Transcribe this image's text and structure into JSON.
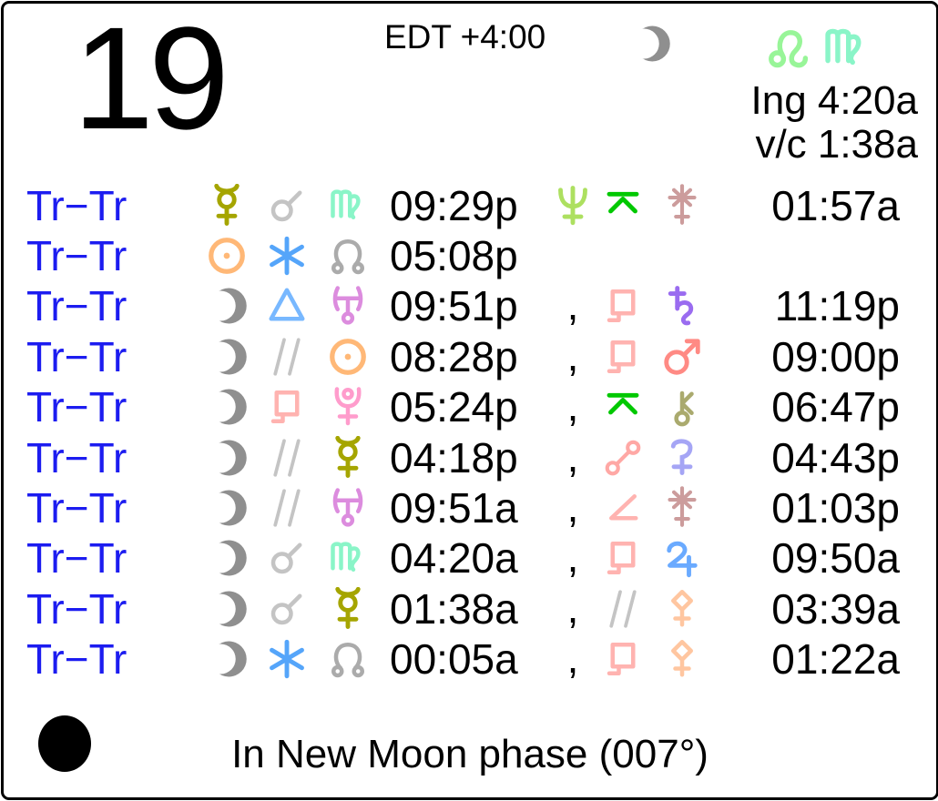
{
  "header": {
    "day": "19",
    "timezone": "EDT +4:00",
    "moon_icon": "moon",
    "signs": [
      "leo",
      "virgo"
    ],
    "ingress": "Ing 4:20a",
    "void_of_course": "v/c 1:38a"
  },
  "punctuation": {
    "comma": ","
  },
  "colors": {
    "label_blue": "#1c1cf0",
    "text": "#000000",
    "moon": "#8f8f8f",
    "sun": "#ffb877",
    "mercury": "#a5a500",
    "mars": "#ff8a84",
    "jupiter": "#6aaaff",
    "saturn": "#9a6cf0",
    "uranus": "#dc8cde",
    "neptune": "#ade060",
    "pluto": "#ff9ccc",
    "node": "#ababab",
    "chiron": "#aaaa6e",
    "ceres": "#a5a5f5",
    "pallas": "#ffc6a0",
    "juno": "#cc9c9c",
    "leo": "#98f598",
    "virgo": "#8af5c8",
    "conjunction": "#c4c4c4",
    "sextile": "#55a5fa",
    "trine": "#78b8ff",
    "parallel": "#c4c4c4",
    "semisquare": "#ffb3b0",
    "sesquiquadrate": "#ffb3b0",
    "quincunx": "#00c800",
    "opposition": "#ffa8a5",
    "new_moon": "#000000"
  },
  "rows": [
    {
      "label": "Tr−Tr",
      "left": {
        "glyphs": [
          "mercury",
          "conjunction",
          "virgo"
        ],
        "time": "09:29p"
      },
      "right": {
        "items": [
          "neptune",
          "quincunx",
          "juno"
        ],
        "time": "01:57a"
      }
    },
    {
      "label": "Tr−Tr",
      "left": {
        "glyphs": [
          "sun",
          "sextile",
          "node"
        ],
        "time": "05:08p"
      },
      "right": null
    },
    {
      "label": "Tr−Tr",
      "left": {
        "glyphs": [
          "moon",
          "trine",
          "uranus"
        ],
        "time": "09:51p"
      },
      "right": {
        "items": [
          "comma",
          "sesquiquadrate",
          "saturn"
        ],
        "time": "11:19p"
      }
    },
    {
      "label": "Tr−Tr",
      "left": {
        "glyphs": [
          "moon",
          "parallel",
          "sun"
        ],
        "time": "08:28p"
      },
      "right": {
        "items": [
          "comma",
          "sesquiquadrate",
          "mars"
        ],
        "time": "09:00p"
      }
    },
    {
      "label": "Tr−Tr",
      "left": {
        "glyphs": [
          "moon",
          "sesquiquadrate",
          "pluto"
        ],
        "time": "05:24p"
      },
      "right": {
        "items": [
          "comma",
          "quincunx",
          "chiron"
        ],
        "time": "06:47p"
      }
    },
    {
      "label": "Tr−Tr",
      "left": {
        "glyphs": [
          "moon",
          "parallel",
          "mercury"
        ],
        "time": "04:18p"
      },
      "right": {
        "items": [
          "comma",
          "opposition",
          "ceres"
        ],
        "time": "04:43p"
      }
    },
    {
      "label": "Tr−Tr",
      "left": {
        "glyphs": [
          "moon",
          "parallel",
          "uranus"
        ],
        "time": "09:51a"
      },
      "right": {
        "items": [
          "comma",
          "semisquare",
          "juno"
        ],
        "time": "01:03p"
      }
    },
    {
      "label": "Tr−Tr",
      "left": {
        "glyphs": [
          "moon",
          "conjunction",
          "virgo"
        ],
        "time": "04:20a"
      },
      "right": {
        "items": [
          "comma",
          "sesquiquadrate",
          "jupiter"
        ],
        "time": "09:50a"
      }
    },
    {
      "label": "Tr−Tr",
      "left": {
        "glyphs": [
          "moon",
          "conjunction",
          "mercury"
        ],
        "time": "01:38a"
      },
      "right": {
        "items": [
          "comma",
          "parallel",
          "pallas"
        ],
        "time": "03:39a"
      }
    },
    {
      "label": "Tr−Tr",
      "left": {
        "glyphs": [
          "moon",
          "sextile",
          "node"
        ],
        "time": "00:05a"
      },
      "right": {
        "items": [
          "comma",
          "sesquiquadrate",
          "pallas"
        ],
        "time": "01:22a"
      }
    }
  ],
  "footer": {
    "phase_icon": "new-moon",
    "phase_text": "In New Moon phase (007°)"
  }
}
